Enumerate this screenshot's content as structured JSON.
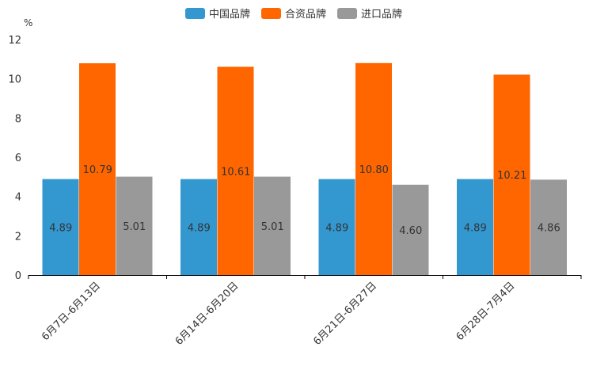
{
  "chart_data": {
    "type": "bar",
    "title": "",
    "unit": "%",
    "xlabel": "",
    "ylabel": "%",
    "ylim": [
      0,
      12
    ],
    "yticks": [
      0,
      2,
      4,
      6,
      8,
      10,
      12
    ],
    "legend_position": "top-center",
    "grid": false,
    "categories": [
      "6月7日-6月13日",
      "6月14日-6月20日",
      "6月21日-6月27日",
      "6月28日-7月4日"
    ],
    "series": [
      {
        "name": "中国品牌",
        "color": "#3498d0",
        "values": [
          4.89,
          4.89,
          4.89,
          4.89
        ],
        "labels": [
          "4.89",
          "4.89",
          "4.89",
          "4.89"
        ]
      },
      {
        "name": "合资品牌",
        "color": "#ff6600",
        "values": [
          10.79,
          10.61,
          10.8,
          10.21
        ],
        "labels": [
          "10.79",
          "10.61",
          "10.80",
          "10.21"
        ]
      },
      {
        "name": "进口品牌",
        "color": "#999999",
        "values": [
          5.01,
          5.01,
          4.6,
          4.86
        ],
        "labels": [
          "5.01",
          "5.01",
          "4.60",
          "4.86"
        ]
      }
    ]
  }
}
